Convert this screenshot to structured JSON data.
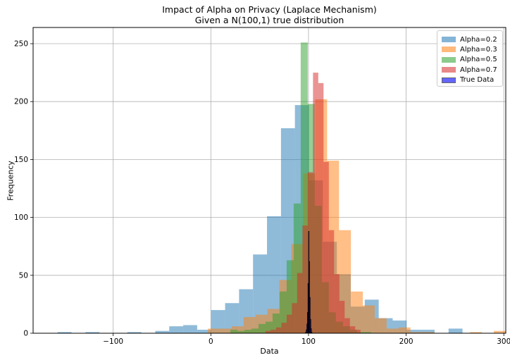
{
  "title_line1": "Impact of Alpha on Privacy (Laplace Mechanism)",
  "title_line2": "Given a N(100,1) true distribution",
  "chart_data": {
    "type": "histogram",
    "title": "Impact of Alpha on Privacy (Laplace Mechanism)\nGiven a N(100,1) true distribution",
    "xlabel": "Data",
    "ylabel": "Frequency",
    "xlim": [
      -182,
      302
    ],
    "ylim": [
      0,
      264
    ],
    "xticks": [
      -100,
      0,
      100,
      200,
      300
    ],
    "yticks": [
      0,
      50,
      100,
      150,
      200,
      250
    ],
    "grid": true,
    "legend_position": "top-right",
    "series": [
      {
        "name": "Alpha=0.2",
        "color": "#1f77b4",
        "opacity": 0.5,
        "bin_start": -157,
        "bin_width": 14.3,
        "counts": [
          1,
          0,
          1,
          0,
          0,
          1,
          0,
          2,
          6,
          7,
          3,
          20,
          26,
          38,
          68,
          101,
          177,
          197,
          132,
          79,
          51,
          23,
          29,
          13,
          11,
          3,
          3,
          0,
          4
        ]
      },
      {
        "name": "Alpha=0.3",
        "color": "#ff7f0e",
        "opacity": 0.5,
        "bin_start": -3,
        "bin_width": 12.2,
        "counts": [
          4,
          4,
          6,
          14,
          16,
          21,
          46,
          77,
          138,
          202,
          149,
          89,
          36,
          24,
          13,
          4,
          5,
          1,
          1,
          0,
          0,
          0,
          1,
          0,
          2
        ]
      },
      {
        "name": "Alpha=0.5",
        "color": "#2ca02c",
        "opacity": 0.5,
        "bin_start": 20,
        "bin_width": 7.2,
        "counts": [
          3,
          2,
          3,
          4,
          8,
          10,
          17,
          36,
          63,
          112,
          251,
          198,
          110,
          44,
          18,
          10,
          6,
          3,
          1,
          1
        ]
      },
      {
        "name": "Alpha=0.7",
        "color": "#d62728",
        "opacity": 0.5,
        "bin_start": 56,
        "bin_width": 5.4,
        "counts": [
          2,
          3,
          5,
          9,
          16,
          26,
          52,
          93,
          139,
          225,
          216,
          148,
          89,
          51,
          28,
          13,
          6,
          3
        ]
      },
      {
        "name": "True Data",
        "color": "#0000ff",
        "opacity": 0.5,
        "bin_start": 97,
        "bin_width": 0.6,
        "counts": [
          1,
          3,
          8,
          18,
          43,
          88,
          62,
          31,
          12,
          4,
          1
        ]
      }
    ]
  }
}
